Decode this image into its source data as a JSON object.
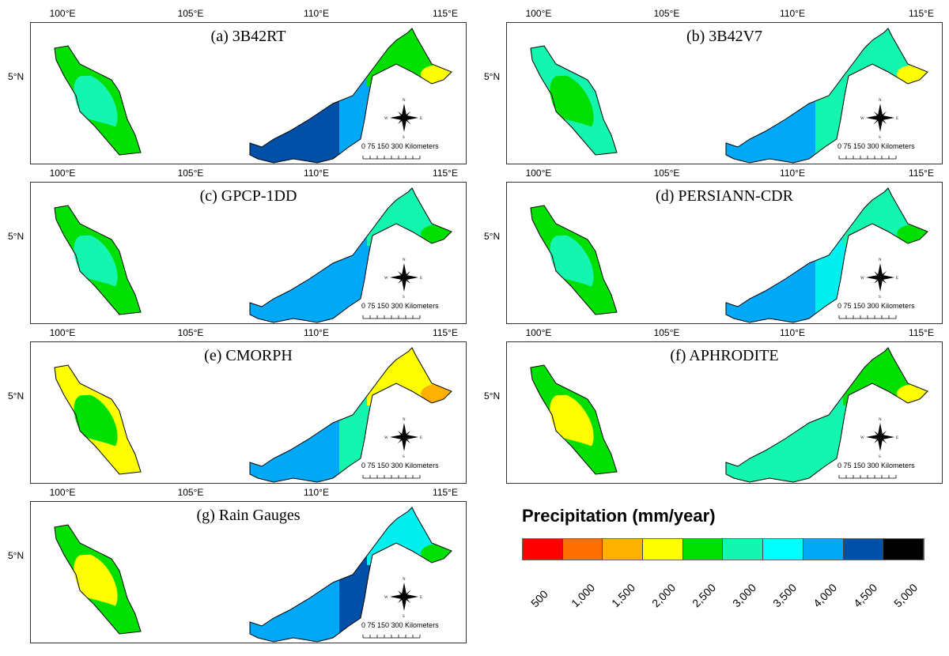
{
  "axes": {
    "lon_labels": [
      "100°E",
      "105°E",
      "110°E",
      "115°E"
    ],
    "lat_label": "5°N"
  },
  "scale": {
    "text": "0  75 150       300 Kilometers"
  },
  "compass": {
    "n": "N",
    "s": "S",
    "e": "E",
    "w": "W"
  },
  "panels": [
    {
      "label": "(a) 3B42RT",
      "pen_base": "#00e000",
      "pen_inner": "#14f5b0",
      "bw": "#0050a8",
      "bc": "#00a8f8",
      "sabah": "#00e000",
      "sabah_east": "#ffff00"
    },
    {
      "label": "(b) 3B42V7",
      "pen_base": "#14f5b0",
      "pen_inner": "#00e000",
      "bw": "#00a8f8",
      "bc": "#14f5b0",
      "sabah": "#14f5b0",
      "sabah_east": "#ffff00"
    },
    {
      "label": "(c) GPCP-1DD",
      "pen_base": "#00e000",
      "pen_inner": "#14f5b0",
      "bw": "#00a8f8",
      "bc": "#00a8f8",
      "sabah": "#14f5b0",
      "sabah_east": "#00e000"
    },
    {
      "label": "(d) PERSIANN-CDR",
      "pen_base": "#00e000",
      "pen_inner": "#14f5b0",
      "bw": "#00a8f8",
      "bc": "#00f0f0",
      "sabah": "#14f5b0",
      "sabah_east": "#00e000"
    },
    {
      "label": "(e) CMORPH",
      "pen_base": "#ffff00",
      "pen_inner": "#00e000",
      "bw": "#00a8f8",
      "bc": "#14f5b0",
      "sabah": "#ffff00",
      "sabah_east": "#ffb000"
    },
    {
      "label": "(f) APHRODITE",
      "pen_base": "#00e000",
      "pen_inner": "#ffff00",
      "bw": "#14f5b0",
      "bc": "#14f5b0",
      "sabah": "#00e000",
      "sabah_east": "#ffff00"
    },
    {
      "label": "(g) Rain Gauges",
      "pen_base": "#00e000",
      "pen_inner": "#ffff00",
      "bw": "#00a8f8",
      "bc": "#0050a8",
      "sabah": "#00f0f0",
      "sabah_east": "#00e000"
    }
  ],
  "legend": {
    "title": "Precipitation (mm/year)",
    "colors": [
      "#ff0000",
      "#ff7000",
      "#ffb000",
      "#ffff00",
      "#00e000",
      "#14f5b0",
      "#00ffff",
      "#00a8f8",
      "#0050a8",
      "#000000"
    ],
    "ticks": [
      "500",
      "1,000",
      "1,500",
      "2,000",
      "2,500",
      "3,000",
      "3,500",
      "4,000",
      "4,500",
      "5,000"
    ]
  }
}
